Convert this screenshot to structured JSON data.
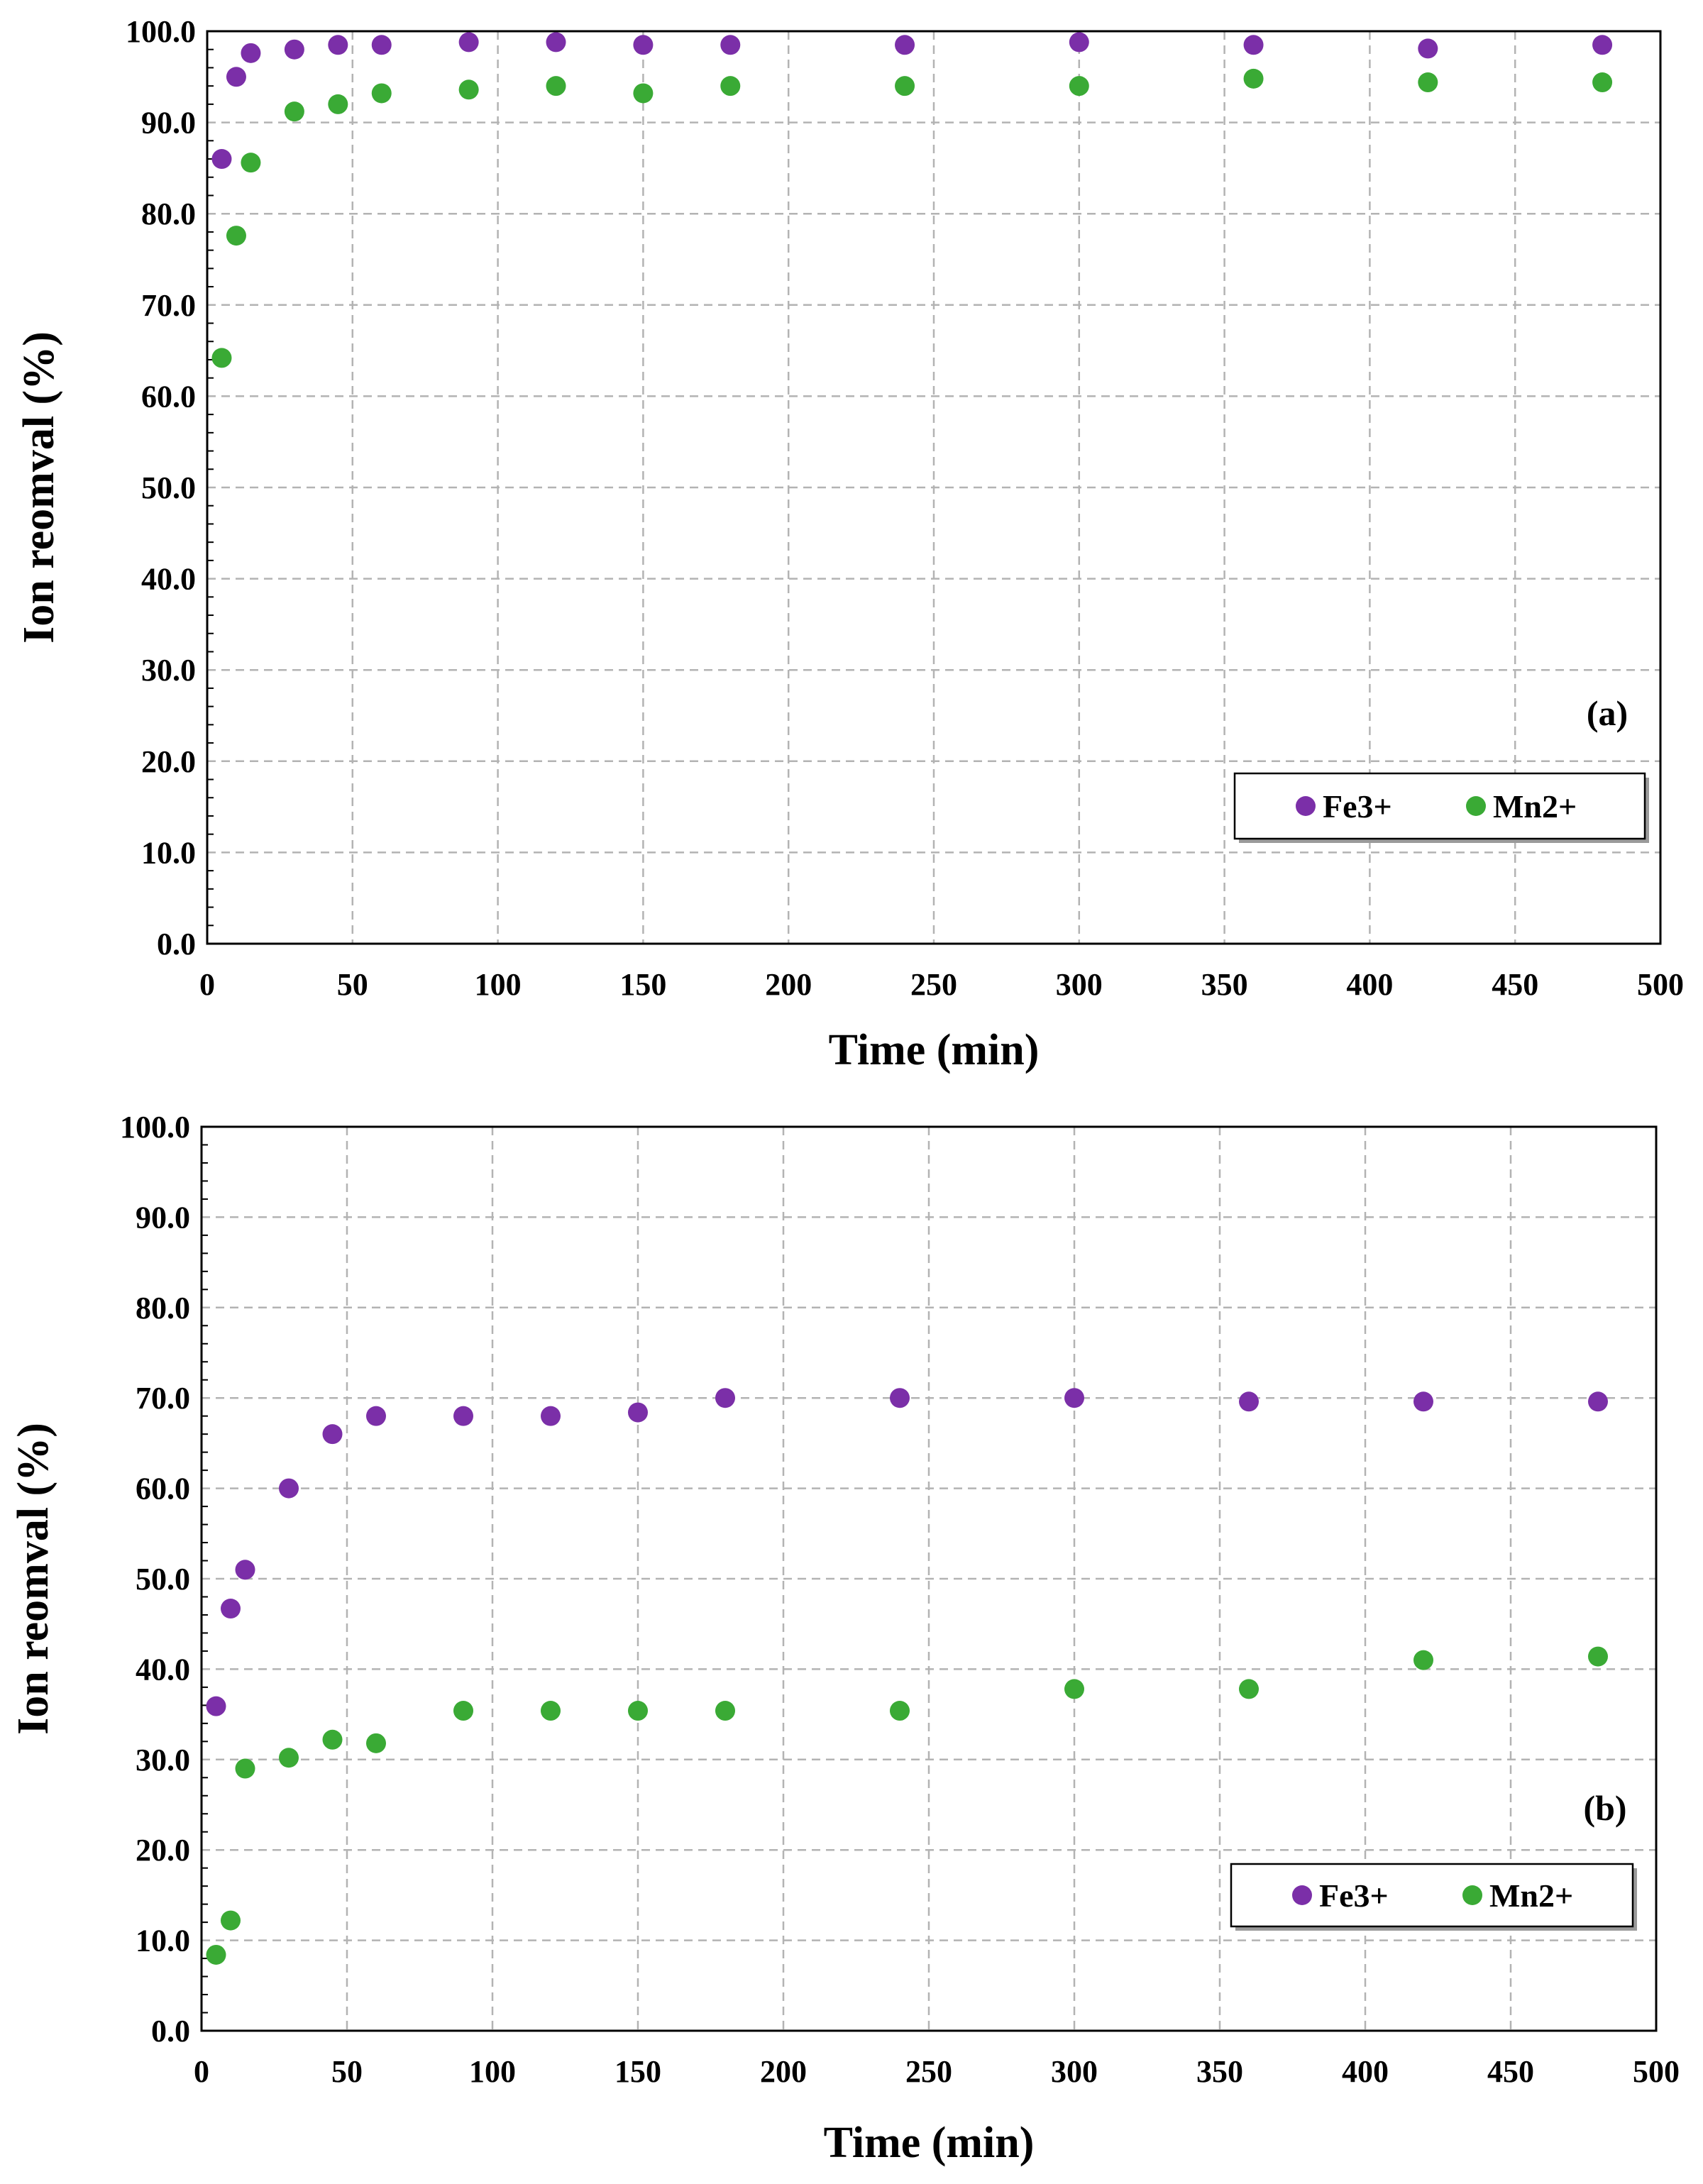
{
  "chart_data": [
    {
      "type": "scatter",
      "panel_label": "(a)",
      "xlabel": "Time (min)",
      "ylabel": "Ion reomval (%)",
      "xlim": [
        0,
        500
      ],
      "ylim": [
        0,
        100
      ],
      "x_ticks": [
        "0",
        "50",
        "100",
        "150",
        "200",
        "250",
        "300",
        "350",
        "400",
        "450",
        "500"
      ],
      "y_ticks": [
        "0.0",
        "10.0",
        "20.0",
        "30.0",
        "40.0",
        "50.0",
        "60.0",
        "70.0",
        "80.0",
        "90.0",
        "100.0"
      ],
      "grid": true,
      "legend_position": "bottom-right",
      "series": [
        {
          "name": "Fe3+",
          "color": "#7b2fa8",
          "x": [
            5,
            10,
            15,
            30,
            45,
            60,
            90,
            120,
            150,
            180,
            240,
            300,
            360,
            420,
            480
          ],
          "y": [
            86.0,
            95.0,
            97.6,
            98.0,
            98.5,
            98.5,
            98.8,
            98.8,
            98.5,
            98.5,
            98.5,
            98.8,
            98.5,
            98.1,
            98.5
          ]
        },
        {
          "name": "Mn2+",
          "color": "#3aaa35",
          "x": [
            5,
            10,
            15,
            30,
            45,
            60,
            90,
            120,
            150,
            180,
            240,
            300,
            360,
            420,
            480
          ],
          "y": [
            64.2,
            77.6,
            85.6,
            91.2,
            92.0,
            93.2,
            93.6,
            94.0,
            93.2,
            94.0,
            94.0,
            94.0,
            94.8,
            94.4,
            94.4
          ]
        }
      ]
    },
    {
      "type": "scatter",
      "panel_label": "(b)",
      "xlabel": "Time (min)",
      "ylabel": "Ion reomval (%)",
      "xlim": [
        0,
        500
      ],
      "ylim": [
        0,
        100
      ],
      "x_ticks": [
        "0",
        "50",
        "100",
        "150",
        "200",
        "250",
        "300",
        "350",
        "400",
        "450",
        "500"
      ],
      "y_ticks": [
        "0.0",
        "10.0",
        "20.0",
        "30.0",
        "40.0",
        "50.0",
        "60.0",
        "70.0",
        "80.0",
        "90.0",
        "100.0"
      ],
      "grid": true,
      "legend_position": "bottom-right",
      "series": [
        {
          "name": "Fe3+",
          "color": "#7b2fa8",
          "x": [
            5,
            10,
            15,
            30,
            45,
            60,
            90,
            120,
            150,
            180,
            240,
            300,
            360,
            420,
            480
          ],
          "y": [
            35.9,
            46.7,
            51.0,
            60.0,
            66.0,
            68.0,
            68.0,
            68.0,
            68.4,
            70.0,
            70.0,
            70.0,
            69.6,
            69.6,
            69.6
          ]
        },
        {
          "name": "Mn2+",
          "color": "#3aaa35",
          "x": [
            5,
            10,
            15,
            30,
            45,
            60,
            90,
            120,
            150,
            180,
            240,
            300,
            360,
            420,
            480
          ],
          "y": [
            8.4,
            12.2,
            29.0,
            30.2,
            32.2,
            31.8,
            35.4,
            35.4,
            35.4,
            35.4,
            35.4,
            37.8,
            37.8,
            41.0,
            41.4
          ]
        }
      ]
    }
  ]
}
